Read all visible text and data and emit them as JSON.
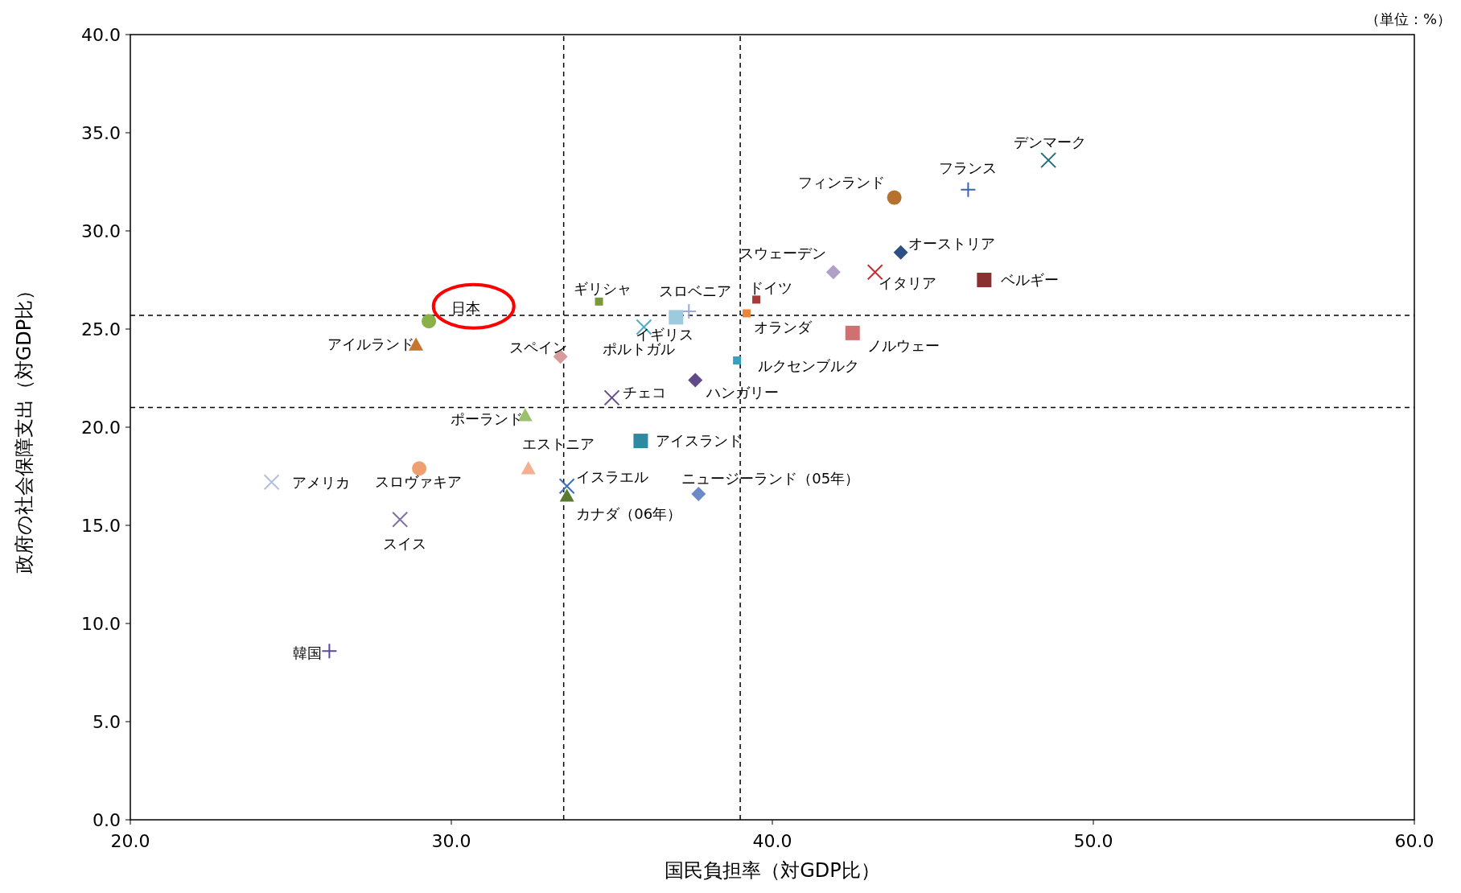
{
  "chart_data": {
    "type": "scatter",
    "xlabel": "国民負担率（対GDP比）",
    "ylabel": "政府の社会保障支出（対GDP比）",
    "annotations": [
      "（単位：%）"
    ],
    "xlim": [
      20,
      60
    ],
    "ylim": [
      0,
      40
    ],
    "xticks": [
      {
        "value": 20,
        "label": "20.0"
      },
      {
        "value": 30,
        "label": "30.0"
      },
      {
        "value": 40,
        "label": "40.0"
      },
      {
        "value": 50,
        "label": "50.0"
      },
      {
        "value": 60,
        "label": "60.0"
      }
    ],
    "yticks": [
      {
        "value": 0,
        "label": "0.0"
      },
      {
        "value": 5,
        "label": "5.0"
      },
      {
        "value": 10,
        "label": "10.0"
      },
      {
        "value": 15,
        "label": "15.0"
      },
      {
        "value": 20,
        "label": "20.0"
      },
      {
        "value": 25,
        "label": "25.0"
      },
      {
        "value": 30,
        "label": "30.0"
      },
      {
        "value": 35,
        "label": "35.0"
      },
      {
        "value": 40,
        "label": "40.0"
      }
    ],
    "grid": false,
    "ref_lines": [
      {
        "axis": "x",
        "value": 33.5,
        "line_style": "dashed",
        "color": "#000000"
      },
      {
        "axis": "x",
        "value": 39.0,
        "line_style": "dashed",
        "color": "#000000"
      },
      {
        "axis": "y",
        "value": 25.7,
        "line_style": "dashed",
        "color": "#000000"
      },
      {
        "axis": "y",
        "value": 21.0,
        "line_style": "dashed",
        "color": "#000000"
      }
    ],
    "series": [
      {
        "name": "デンマーク",
        "x": [
          48.6
        ],
        "values": [
          33.6
        ],
        "marker": "cross",
        "color": "#1f6e7a"
      },
      {
        "name": "フランス",
        "x": [
          46.1
        ],
        "values": [
          32.1
        ],
        "marker": "plus",
        "color": "#3a64b0"
      },
      {
        "name": "フィンランド",
        "x": [
          43.8
        ],
        "values": [
          31.7
        ],
        "marker": "circle",
        "color": "#b5722e"
      },
      {
        "name": "オーストリア",
        "x": [
          44.0
        ],
        "values": [
          28.9
        ],
        "marker": "diamond",
        "color": "#2e4f85"
      },
      {
        "name": "スウェーデン",
        "x": [
          41.9
        ],
        "values": [
          27.9
        ],
        "marker": "diamond",
        "color": "#b0a0c8"
      },
      {
        "name": "イタリア",
        "x": [
          43.2
        ],
        "values": [
          27.9
        ],
        "marker": "cross",
        "color": "#c03030"
      },
      {
        "name": "ベルギー",
        "x": [
          46.6
        ],
        "values": [
          27.5
        ],
        "marker": "square",
        "color": "#8b3030"
      },
      {
        "name": "ドイツ",
        "x": [
          39.5
        ],
        "values": [
          26.5
        ],
        "marker": "square",
        "color": "#a83a3a"
      },
      {
        "name": "スロベニア",
        "x": [
          37.4
        ],
        "values": [
          25.9
        ],
        "marker": "plus",
        "color": "#9aaad8"
      },
      {
        "name": "オランダ",
        "x": [
          39.2
        ],
        "values": [
          25.8
        ],
        "marker": "square",
        "color": "#e8873a"
      },
      {
        "name": "ギリシャ",
        "x": [
          34.6
        ],
        "values": [
          26.4
        ],
        "marker": "square",
        "color": "#7a9a3a"
      },
      {
        "name": "日本",
        "x": [
          29.3
        ],
        "values": [
          25.4
        ],
        "marker": "circle",
        "color": "#8ab04a"
      },
      {
        "name": "アイルランド",
        "x": [
          28.9
        ],
        "values": [
          24.2
        ],
        "marker": "triangle",
        "color": "#c8762e"
      },
      {
        "name": "スペイン",
        "x": [
          33.4
        ],
        "values": [
          23.6
        ],
        "marker": "diamond",
        "color": "#d89a9a"
      },
      {
        "name": "ポルトガル",
        "x": [
          37.0
        ],
        "values": [
          25.6
        ],
        "marker": "square",
        "color": "#9ecae0"
      },
      {
        "name": "イギリス",
        "x": [
          36.0
        ],
        "values": [
          25.1
        ],
        "marker": "cross",
        "color": "#4aaec8"
      },
      {
        "name": "ノルウェー",
        "x": [
          42.5
        ],
        "values": [
          24.8
        ],
        "marker": "square",
        "color": "#d07070"
      },
      {
        "name": "ルクセンブルク",
        "x": [
          38.9
        ],
        "values": [
          23.4
        ],
        "marker": "square",
        "color": "#3aa0c0"
      },
      {
        "name": "ハンガリー",
        "x": [
          37.6
        ],
        "values": [
          22.4
        ],
        "marker": "diamond",
        "color": "#604a8a"
      },
      {
        "name": "チェコ",
        "x": [
          35.0
        ],
        "values": [
          21.5
        ],
        "marker": "cross",
        "color": "#6a4a8a"
      },
      {
        "name": "ポーランド",
        "x": [
          32.3
        ],
        "values": [
          20.6
        ],
        "marker": "triangle",
        "color": "#9ac070"
      },
      {
        "name": "アイスランド",
        "x": [
          35.9
        ],
        "values": [
          19.3
        ],
        "marker": "square",
        "color": "#2e8aa0"
      },
      {
        "name": "エストニア",
        "x": [
          32.4
        ],
        "values": [
          17.9
        ],
        "marker": "triangle",
        "color": "#f4b090"
      },
      {
        "name": "スロヴァキア",
        "x": [
          29.0
        ],
        "values": [
          17.9
        ],
        "marker": "circle",
        "color": "#f0a070"
      },
      {
        "name": "アメリカ",
        "x": [
          24.4
        ],
        "values": [
          17.2
        ],
        "marker": "cross",
        "color": "#b0c0e0"
      },
      {
        "name": "イスラエル",
        "x": [
          33.6
        ],
        "values": [
          17.0
        ],
        "marker": "cross",
        "color": "#3a70c0"
      },
      {
        "name": "カナダ（06年）",
        "x": [
          33.6
        ],
        "values": [
          16.5
        ],
        "marker": "triangle",
        "color": "#5a7a2e"
      },
      {
        "name": "ニュージーランド（05年）",
        "x": [
          37.7
        ],
        "values": [
          16.6
        ],
        "marker": "diamond",
        "color": "#6a8ac8"
      },
      {
        "name": "スイス",
        "x": [
          28.4
        ],
        "values": [
          15.3
        ],
        "marker": "cross",
        "color": "#8070a8"
      },
      {
        "name": "韓国",
        "x": [
          26.2
        ],
        "values": [
          8.6
        ],
        "marker": "plus",
        "color": "#5a4a9a"
      }
    ]
  }
}
